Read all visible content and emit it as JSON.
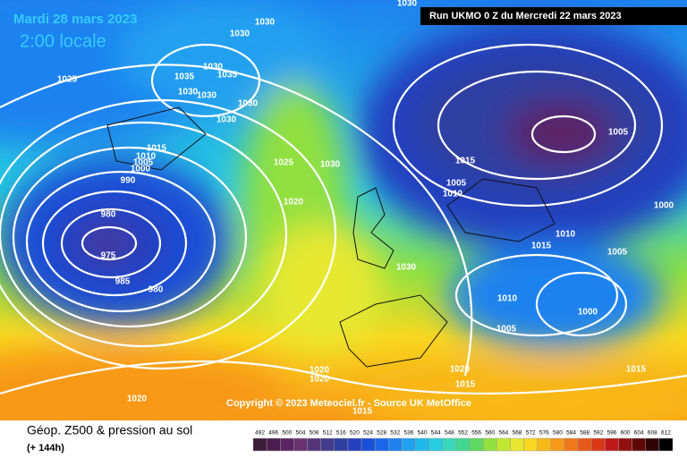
{
  "header": {
    "date": "Mardi 28 mars 2023",
    "time": "2:00 locale",
    "run": "Run UKMO 0 Z du Mercredi 22 mars 2023"
  },
  "map": {
    "copyright": "Copyright © 2023 Meteociel.fr - Source UK MetOffice",
    "isobar_labels": [
      1030,
      1030,
      1030,
      1030,
      1035,
      1035,
      1030,
      1030,
      1030,
      1030,
      1025,
      1015,
      1010,
      1005,
      1000,
      990,
      980,
      975,
      985,
      980,
      1025,
      1030,
      1020,
      1015,
      1005,
      1010,
      1005,
      1000,
      1015,
      1010,
      1005,
      1030,
      1010,
      1000,
      1005,
      1020,
      1020,
      1020,
      1020,
      1015,
      1015,
      1015
    ]
  },
  "legend": {
    "title": "Géop. Z500 & pression au sol",
    "lead": "(+ 144h)",
    "levels": [
      492,
      496,
      500,
      504,
      508,
      512,
      516,
      520,
      524,
      528,
      532,
      536,
      540,
      544,
      548,
      552,
      556,
      560,
      564,
      568,
      572,
      576,
      580,
      584,
      588,
      592,
      596,
      600,
      604,
      608,
      612
    ],
    "colors": [
      "#3a1b3a",
      "#4b1d4f",
      "#5b2463",
      "#68326f",
      "#55357a",
      "#423c8a",
      "#2e3fa0",
      "#2340c0",
      "#1a50d8",
      "#1a66e8",
      "#1e82f0",
      "#20a0f0",
      "#20b8e8",
      "#28cce0",
      "#38d8b8",
      "#40d890",
      "#60d860",
      "#90e040",
      "#c0e830",
      "#e8e830",
      "#f8d820",
      "#f8b818",
      "#f89818",
      "#f07818",
      "#e85818",
      "#d83818",
      "#c01818",
      "#901010",
      "#600808",
      "#300404",
      "#000000"
    ]
  }
}
